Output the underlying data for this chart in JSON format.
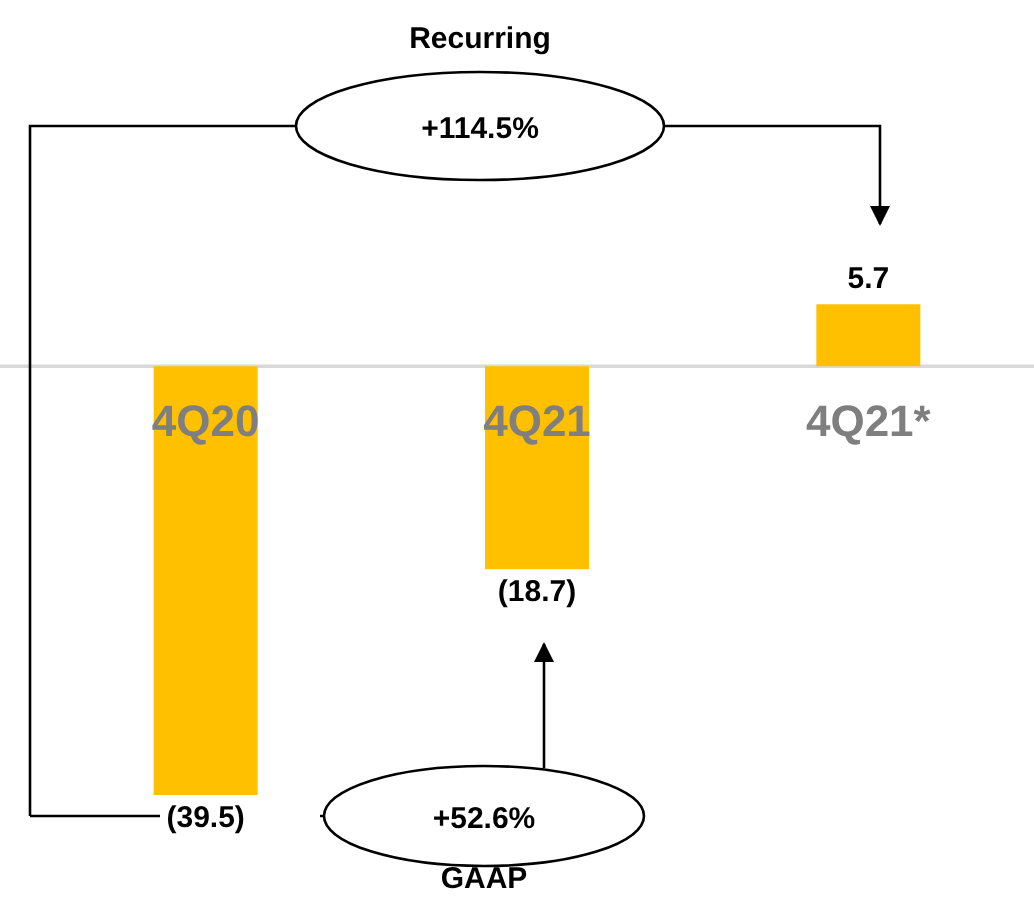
{
  "chart_data": {
    "type": "bar",
    "categories": [
      "4Q20",
      "4Q21",
      "4Q21*"
    ],
    "values": [
      -39.5,
      -18.7,
      5.7
    ],
    "color": "#ffc000",
    "value_labels": [
      "(39.5)",
      "(18.7)",
      "5.7"
    ],
    "annotations": [
      "Recurring",
      "+114.5%",
      "+52.6%",
      "GAAP"
    ]
  }
}
